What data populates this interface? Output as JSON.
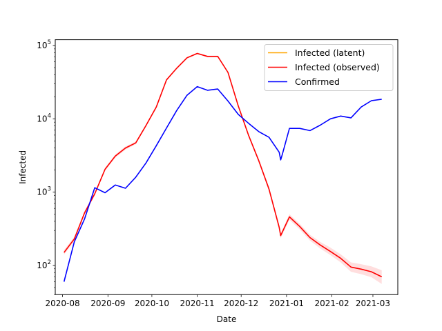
{
  "chart_data": {
    "type": "line",
    "title": "",
    "xlabel": "Date",
    "ylabel": "Infected",
    "y_scale": "log",
    "ylim": [
      40,
      120000
    ],
    "xlim": [
      "2020-07-27",
      "2021-03-18"
    ],
    "grid": false,
    "legend_position": "top-right",
    "x_ticks": [
      "2020-08",
      "2020-09",
      "2020-10",
      "2020-11",
      "2020-12",
      "2021-01",
      "2021-02",
      "2021-03"
    ],
    "y_ticks": [
      {
        "value": 100,
        "base": "10",
        "exp": "2"
      },
      {
        "value": 1000,
        "base": "10",
        "exp": "3"
      },
      {
        "value": 10000,
        "base": "10",
        "exp": "4"
      },
      {
        "value": 100000,
        "base": "10",
        "exp": "5"
      }
    ],
    "series": [
      {
        "name": "Infected (latent)",
        "color": "#ffa500",
        "points": []
      },
      {
        "name": "Infected (observed)",
        "color": "#ff0000",
        "band_color": "#ff0000",
        "points": [
          [
            "2020-08-02",
            150
          ],
          [
            "2020-08-09",
            230
          ],
          [
            "2020-08-16",
            520
          ],
          [
            "2020-08-23",
            950
          ],
          [
            "2020-08-30",
            2050
          ],
          [
            "2020-09-06",
            3100
          ],
          [
            "2020-09-13",
            4000
          ],
          [
            "2020-09-20",
            4700
          ],
          [
            "2020-09-27",
            8100
          ],
          [
            "2020-10-04",
            14500
          ],
          [
            "2020-10-11",
            34000
          ],
          [
            "2020-10-18",
            49000
          ],
          [
            "2020-10-25",
            68000
          ],
          [
            "2020-11-01",
            78000
          ],
          [
            "2020-11-08",
            71000
          ],
          [
            "2020-11-15",
            71000
          ],
          [
            "2020-11-22",
            43000
          ],
          [
            "2020-11-29",
            15000
          ],
          [
            "2020-12-06",
            6000
          ],
          [
            "2020-12-13",
            2700
          ],
          [
            "2020-12-20",
            1100
          ],
          [
            "2020-12-27",
            330
          ],
          [
            "2020-12-28",
            255
          ],
          [
            "2021-01-03",
            460
          ],
          [
            "2021-01-10",
            340
          ],
          [
            "2021-01-17",
            240
          ],
          [
            "2021-01-24",
            190
          ],
          [
            "2021-01-31",
            155
          ],
          [
            "2021-02-07",
            125
          ],
          [
            "2021-02-14",
            95
          ],
          [
            "2021-02-21",
            89
          ],
          [
            "2021-02-28",
            82
          ],
          [
            "2021-03-07",
            70
          ]
        ],
        "band_lower": [
          140,
          215,
          490,
          900,
          1950,
          2950,
          3800,
          4500,
          7800,
          14000,
          33000,
          47500,
          66000,
          76000,
          69000,
          69000,
          41500,
          14400,
          5700,
          2550,
          1020,
          300,
          235,
          420,
          310,
          218,
          170,
          138,
          110,
          82,
          76,
          69,
          56
        ],
        "band_upper": [
          162,
          245,
          550,
          1000,
          2150,
          3250,
          4200,
          4900,
          8400,
          15000,
          35000,
          50500,
          70000,
          80000,
          73000,
          73000,
          44500,
          15600,
          6300,
          2850,
          1180,
          360,
          275,
          500,
          370,
          262,
          210,
          175,
          142,
          110,
          104,
          97,
          86
        ]
      },
      {
        "name": "Confirmed",
        "color": "#0000ff",
        "points": [
          [
            "2020-08-02",
            60
          ],
          [
            "2020-08-09",
            210
          ],
          [
            "2020-08-16",
            430
          ],
          [
            "2020-08-23",
            1150
          ],
          [
            "2020-08-30",
            980
          ],
          [
            "2020-09-06",
            1250
          ],
          [
            "2020-09-13",
            1130
          ],
          [
            "2020-09-20",
            1600
          ],
          [
            "2020-09-27",
            2500
          ],
          [
            "2020-10-04",
            4300
          ],
          [
            "2020-10-11",
            7500
          ],
          [
            "2020-10-18",
            13000
          ],
          [
            "2020-10-25",
            21000
          ],
          [
            "2020-11-01",
            27500
          ],
          [
            "2020-11-08",
            24500
          ],
          [
            "2020-11-15",
            25500
          ],
          [
            "2020-11-22",
            17500
          ],
          [
            "2020-11-29",
            11500
          ],
          [
            "2020-12-06",
            8700
          ],
          [
            "2020-12-13",
            6700
          ],
          [
            "2020-12-20",
            5600
          ],
          [
            "2020-12-27",
            3500
          ],
          [
            "2020-12-28",
            2750
          ],
          [
            "2020-12-29",
            3200
          ],
          [
            "2021-01-03",
            7400
          ],
          [
            "2021-01-10",
            7400
          ],
          [
            "2021-01-17",
            6900
          ],
          [
            "2021-01-24",
            8200
          ],
          [
            "2021-01-31",
            10000
          ],
          [
            "2021-02-07",
            10900
          ],
          [
            "2021-02-14",
            10300
          ],
          [
            "2021-02-21",
            14500
          ],
          [
            "2021-02-28",
            17700
          ],
          [
            "2021-03-07",
            18500
          ]
        ]
      }
    ]
  }
}
